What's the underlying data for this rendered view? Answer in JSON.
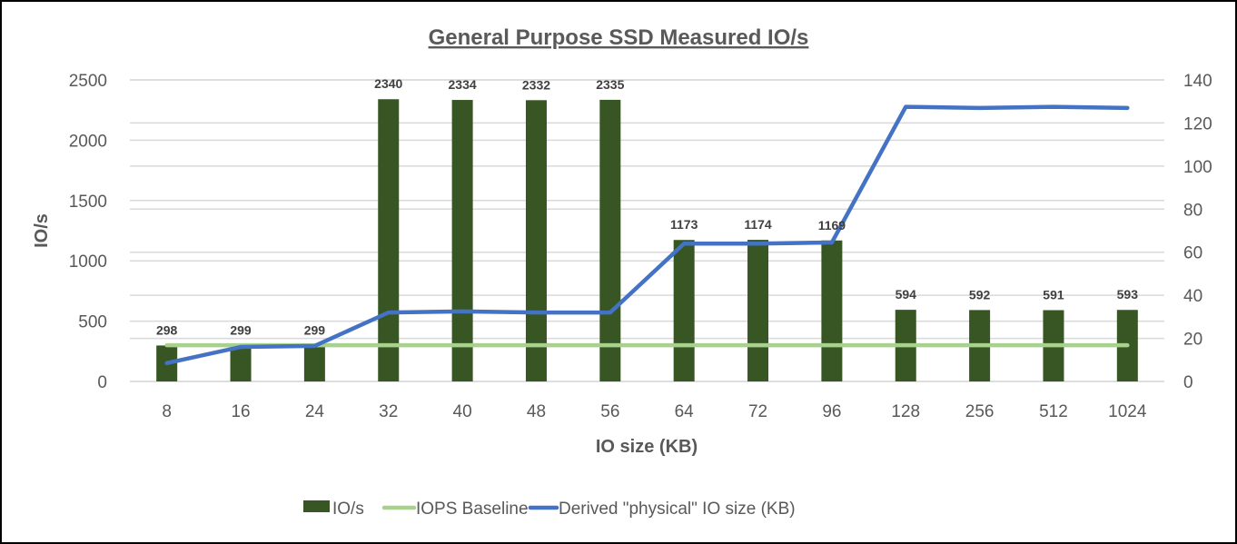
{
  "chart_data": {
    "type": "bar",
    "title": "General Purpose SSD Measured IO/s",
    "xlabel": "IO size (KB)",
    "ylabel": "IO/s",
    "y2label": "",
    "categories": [
      "8",
      "16",
      "24",
      "32",
      "40",
      "48",
      "56",
      "64",
      "72",
      "96",
      "128",
      "256",
      "512",
      "1024"
    ],
    "ylim": [
      0,
      2500
    ],
    "yticks": [
      0,
      500,
      1000,
      1500,
      2000,
      2500
    ],
    "y2lim": [
      0,
      140
    ],
    "y2ticks": [
      0,
      20,
      40,
      60,
      80,
      100,
      120,
      140
    ],
    "grid": true,
    "legend_position": "bottom",
    "series": [
      {
        "name": "IO/s",
        "type": "bar",
        "axis": "left",
        "color": "#375623",
        "values": [
          298,
          299,
          299,
          2340,
          2334,
          2332,
          2335,
          1173,
          1174,
          1169,
          594,
          592,
          591,
          593
        ],
        "data_labels": true
      },
      {
        "name": "IOPS Baseline",
        "type": "line",
        "axis": "left",
        "color": "#A9D18E",
        "values": [
          300,
          300,
          300,
          300,
          300,
          300,
          300,
          300,
          300,
          300,
          300,
          300,
          300,
          300
        ]
      },
      {
        "name": "Derived \"physical\" IO size (KB)",
        "type": "line",
        "axis": "right",
        "color": "#4472C4",
        "values": [
          8.5,
          16,
          16.5,
          32,
          32.5,
          32,
          32,
          64,
          64,
          64.5,
          127.5,
          127,
          127.5,
          127
        ]
      }
    ]
  }
}
